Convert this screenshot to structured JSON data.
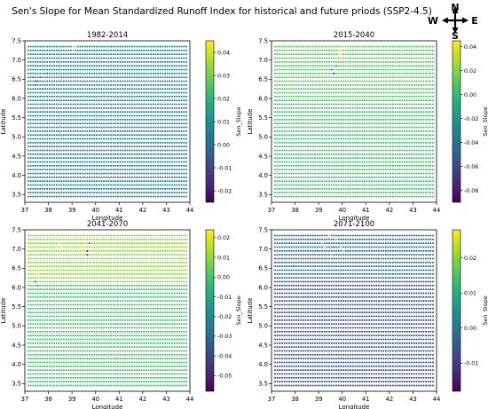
{
  "figure": {
    "title": "Sen's Slope for Mean Standardized Runoff Index for historical and future priods (SSP2-4.5)",
    "compass": {
      "north": "N",
      "south": "S",
      "east": "E",
      "west": "W",
      "icon": "compass-rose-icon"
    }
  },
  "chart_data": [
    {
      "type": "scatter",
      "title": "1982-2014",
      "xlabel": "Longitude",
      "ylabel": "Latitude",
      "xlim": [
        37,
        44
      ],
      "ylim": [
        3.3,
        7.5
      ],
      "xticks": [
        37,
        38,
        39,
        40,
        41,
        42,
        43,
        44
      ],
      "yticks": [
        3.5,
        4.0,
        4.5,
        5.0,
        5.5,
        6.0,
        6.5,
        7.0,
        7.5
      ],
      "grid": {
        "lon_start": 37.15,
        "lon_end": 43.85,
        "lon_step": 0.1,
        "lat_start": 3.45,
        "lat_end": 7.35,
        "lat_step": 0.1
      },
      "colorbar": {
        "label": "Sen_Slope",
        "min": -0.025,
        "max": 0.045,
        "ticks": [
          -0.02,
          -0.01,
          0.0,
          0.01,
          0.02,
          0.03,
          0.04
        ]
      },
      "background_value": 0.005,
      "north_trend": {
        "from_lat": 5.8,
        "value": 0.007
      },
      "anomalies": [
        {
          "lon": 39.1,
          "lat": 7.3,
          "value": 0.04
        },
        {
          "lon": 39.2,
          "lat": 7.3,
          "value": 0.035
        },
        {
          "lon": 39.1,
          "lat": 7.2,
          "value": 0.03
        },
        {
          "lon": 37.5,
          "lat": 6.4,
          "value": -0.022
        },
        {
          "lon": 37.6,
          "lat": 6.4,
          "value": -0.02
        },
        {
          "lon": 37.5,
          "lat": 6.3,
          "value": -0.018
        },
        {
          "lon": 37.7,
          "lat": 6.5,
          "value": -0.016
        },
        {
          "lon": 37.4,
          "lat": 6.5,
          "value": -0.015
        },
        {
          "lon": 38.0,
          "lat": 6.6,
          "value": -0.012
        },
        {
          "lon": 37.8,
          "lat": 6.2,
          "value": -0.01
        }
      ]
    },
    {
      "type": "scatter",
      "title": "2015-2040",
      "xlabel": "Longitude",
      "ylabel": "Latitude",
      "xlim": [
        37,
        44
      ],
      "ylim": [
        3.3,
        7.5
      ],
      "xticks": [
        37,
        38,
        39,
        40,
        41,
        42,
        43,
        44
      ],
      "yticks": [
        3.5,
        4.0,
        4.5,
        5.0,
        5.5,
        6.0,
        6.5,
        7.0,
        7.5
      ],
      "grid": {
        "lon_start": 37.15,
        "lon_end": 43.85,
        "lon_step": 0.1,
        "lat_start": 3.45,
        "lat_end": 7.35,
        "lat_step": 0.1
      },
      "colorbar": {
        "label": "Sen_Slope",
        "min": -0.09,
        "max": 0.045,
        "ticks": [
          -0.08,
          -0.06,
          -0.04,
          -0.02,
          0.0,
          0.02,
          0.04
        ]
      },
      "background_value": 0.005,
      "north_trend": {
        "from_lat": 6.0,
        "value": 0.01
      },
      "anomalies": [
        {
          "lon": 39.9,
          "lat": 7.2,
          "value": 0.04
        },
        {
          "lon": 40.0,
          "lat": 7.2,
          "value": 0.04
        },
        {
          "lon": 39.9,
          "lat": 7.1,
          "value": 0.035
        },
        {
          "lon": 40.0,
          "lat": 7.1,
          "value": 0.04
        },
        {
          "lon": 39.8,
          "lat": 7.0,
          "value": 0.03
        },
        {
          "lon": 40.0,
          "lat": 7.0,
          "value": 0.035
        },
        {
          "lon": 40.1,
          "lat": 7.3,
          "value": 0.03
        },
        {
          "lon": 39.7,
          "lat": 6.6,
          "value": -0.085
        },
        {
          "lon": 39.6,
          "lat": 6.7,
          "value": -0.05
        },
        {
          "lon": 39.8,
          "lat": 6.8,
          "value": -0.03
        }
      ]
    },
    {
      "type": "scatter",
      "title": "2041-2070",
      "xlabel": "Longitude",
      "ylabel": "Latitude",
      "xlim": [
        37,
        44
      ],
      "ylim": [
        3.3,
        7.5
      ],
      "xticks": [
        37,
        38,
        39,
        40,
        41,
        42,
        43,
        44
      ],
      "yticks": [
        3.5,
        4.0,
        4.5,
        5.0,
        5.5,
        6.0,
        6.5,
        7.0,
        7.5
      ],
      "grid": {
        "lon_start": 37.15,
        "lon_end": 43.85,
        "lon_step": 0.1,
        "lat_start": 3.45,
        "lat_end": 7.35,
        "lat_step": 0.1
      },
      "colorbar": {
        "label": "Sen_Slope",
        "min": -0.058,
        "max": 0.024,
        "ticks": [
          -0.05,
          -0.04,
          -0.03,
          -0.02,
          -0.01,
          0.0,
          0.01,
          0.02
        ]
      },
      "background_value": 0.0,
      "north_trend": {
        "from_lat": 6.1,
        "value": 0.01
      },
      "anomalies": [
        {
          "lon": 37.6,
          "lat": 6.4,
          "value": 0.02
        },
        {
          "lon": 37.6,
          "lat": 6.3,
          "value": 0.022
        },
        {
          "lon": 37.5,
          "lat": 6.3,
          "value": 0.018
        },
        {
          "lon": 38.4,
          "lat": 7.0,
          "value": 0.018
        },
        {
          "lon": 38.5,
          "lat": 7.1,
          "value": 0.02
        },
        {
          "lon": 38.6,
          "lat": 7.0,
          "value": 0.022
        },
        {
          "lon": 39.4,
          "lat": 7.0,
          "value": 0.02
        },
        {
          "lon": 39.5,
          "lat": 6.9,
          "value": 0.02
        },
        {
          "lon": 39.6,
          "lat": 7.0,
          "value": 0.018
        },
        {
          "lon": 39.0,
          "lat": 7.0,
          "value": 0.016
        },
        {
          "lon": 39.7,
          "lat": 6.9,
          "value": -0.055
        },
        {
          "lon": 39.7,
          "lat": 6.8,
          "value": -0.05
        },
        {
          "lon": 37.5,
          "lat": 6.1,
          "value": -0.045
        },
        {
          "lon": 37.6,
          "lat": 6.0,
          "value": -0.02
        },
        {
          "lon": 39.8,
          "lat": 7.1,
          "value": -0.035
        }
      ]
    },
    {
      "type": "scatter",
      "title": "2071-2100",
      "xlabel": "Longitude",
      "ylabel": "Latitude",
      "xlim": [
        37,
        44
      ],
      "ylim": [
        3.3,
        7.5
      ],
      "xticks": [
        37,
        38,
        39,
        40,
        41,
        42,
        43,
        44
      ],
      "yticks": [
        3.5,
        4.0,
        4.5,
        5.0,
        5.5,
        6.0,
        6.5,
        7.0,
        7.5
      ],
      "grid": {
        "lon_start": 37.15,
        "lon_end": 43.85,
        "lon_step": 0.1,
        "lat_start": 3.45,
        "lat_end": 7.35,
        "lat_step": 0.1
      },
      "colorbar": {
        "label": "Sen_Slope",
        "min": -0.018,
        "max": 0.028,
        "ticks": [
          -0.01,
          0.0,
          0.01,
          0.02
        ]
      },
      "background_value": -0.006,
      "north_trend": {
        "from_lat": 6.2,
        "value": -0.002
      },
      "anomalies": [
        {
          "lon": 39.5,
          "lat": 7.3,
          "value": 0.025
        },
        {
          "lon": 39.2,
          "lat": 7.1,
          "value": 0.02
        },
        {
          "lon": 39.3,
          "lat": 7.0,
          "value": 0.02
        },
        {
          "lon": 39.8,
          "lat": 7.2,
          "value": 0.018
        },
        {
          "lon": 40.0,
          "lat": 7.0,
          "value": 0.022
        },
        {
          "lon": 40.1,
          "lat": 6.9,
          "value": 0.02
        },
        {
          "lon": 39.6,
          "lat": 6.8,
          "value": 0.015
        },
        {
          "lon": 38.0,
          "lat": 6.5,
          "value": -0.015
        },
        {
          "lon": 39.7,
          "lat": 7.0,
          "value": -0.016
        },
        {
          "lon": 39.0,
          "lat": 6.9,
          "value": -0.012
        }
      ]
    }
  ]
}
